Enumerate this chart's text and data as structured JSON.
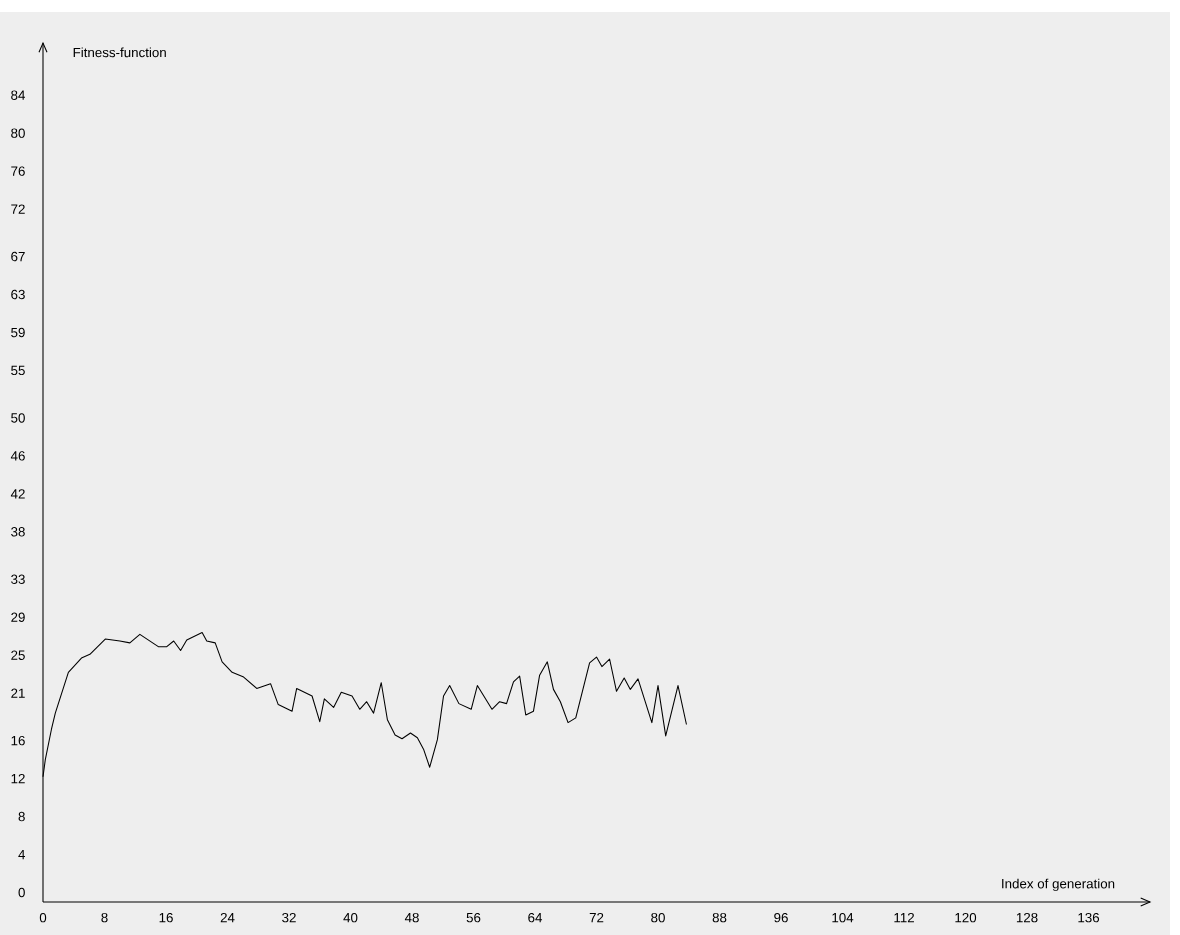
{
  "chart_data": {
    "type": "line",
    "xlabel": "Index of generation",
    "ylabel": "Fitness-function",
    "color": "#000000",
    "x": [
      0,
      0.3,
      1.1,
      1.6,
      3.3,
      5.0,
      6.1,
      8.1,
      10.0,
      11.3,
      12.6,
      15.0,
      16.1,
      17.0,
      17.9,
      18.7,
      20.7,
      21.3,
      22.4,
      23.3,
      24.6,
      26.1,
      27.8,
      29.6,
      30.6,
      32.4,
      33.0,
      35.0,
      36.0,
      36.6,
      37.8,
      38.8,
      40.2,
      41.2,
      42.1,
      43.0,
      44.0,
      44.8,
      45.8,
      46.7,
      47.8,
      48.7,
      49.5,
      50.3,
      51.3,
      52.1,
      52.9,
      54.1,
      55.7,
      56.5,
      58.4,
      59.4,
      60.3,
      61.2,
      62.0,
      62.8,
      63.8,
      64.6,
      65.6,
      66.4,
      67.3,
      68.3,
      69.3,
      71.1,
      72.0,
      72.7,
      73.7,
      74.6,
      75.6,
      76.4,
      77.4,
      79.2,
      80.0,
      81.0,
      82.6,
      83.7
    ],
    "values": [
      12.2,
      14.0,
      17.2,
      18.9,
      23.2,
      24.7,
      25.1,
      26.7,
      26.5,
      26.3,
      27.2,
      25.9,
      25.9,
      26.5,
      25.5,
      26.6,
      27.4,
      26.5,
      26.3,
      24.3,
      23.2,
      22.7,
      21.5,
      22.0,
      19.8,
      19.1,
      21.5,
      20.7,
      18.0,
      20.4,
      19.5,
      21.1,
      20.7,
      19.3,
      20.1,
      18.9,
      22.1,
      18.2,
      16.6,
      16.2,
      16.8,
      16.3,
      15.1,
      13.2,
      16.1,
      20.7,
      21.8,
      19.9,
      19.3,
      21.8,
      19.3,
      20.1,
      19.9,
      22.2,
      22.8,
      18.7,
      19.1,
      22.9,
      24.3,
      21.4,
      20.1,
      17.9,
      18.4,
      24.2,
      24.8,
      23.8,
      24.6,
      21.2,
      22.6,
      21.4,
      22.5,
      17.9,
      21.8,
      16.5,
      21.8,
      17.7
    ],
    "xlim": [
      0,
      144
    ],
    "ylim": [
      -1,
      89.5
    ],
    "xticks": [
      0,
      8,
      16,
      24,
      32,
      40,
      48,
      56,
      64,
      72,
      80,
      88,
      96,
      104,
      112,
      120,
      128,
      136
    ],
    "yticks": [
      0,
      4,
      8,
      12,
      16,
      21,
      25,
      29,
      33,
      38,
      42,
      46,
      50,
      55,
      59,
      63,
      67,
      72,
      76,
      80,
      84
    ]
  }
}
